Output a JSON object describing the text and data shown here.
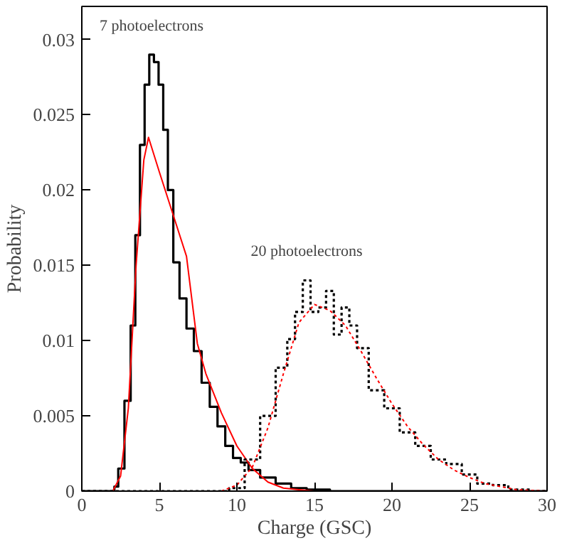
{
  "chart_data": {
    "type": "step",
    "xlabel": "Charge (GSC)",
    "ylabel": "Probability",
    "xlim": [
      0,
      30
    ],
    "ylim": [
      0,
      0.0322
    ],
    "xticks": [
      0,
      5,
      10,
      15,
      20,
      25,
      30
    ],
    "yticks": [
      0,
      0.005,
      0.01,
      0.015,
      0.02,
      0.025,
      0.03
    ],
    "grid": false,
    "annotations": [
      "7 photoelectrons",
      "20 photoelectrons"
    ],
    "series": [
      {
        "color": "#000000",
        "line_style": "solid",
        "x": [
          0,
          2,
          2.2,
          2.5,
          3,
          3.3,
          3.6,
          3.9,
          4.2,
          4.5,
          4.8,
          5.1,
          5.4,
          5.7,
          6.1,
          6.5,
          7,
          7.45,
          8,
          8.5,
          9,
          9.5,
          10,
          10.5,
          11,
          12,
          13,
          14,
          15,
          17,
          30
        ],
        "values": [
          0,
          0,
          0.0003,
          0.0015,
          0.006,
          0.011,
          0.017,
          0.023,
          0.027,
          0.029,
          0.0285,
          0.027,
          0.024,
          0.02,
          0.0152,
          0.0128,
          0.0108,
          0.0093,
          0.0072,
          0.0056,
          0.0043,
          0.003,
          0.0022,
          0.0019,
          0.0014,
          0.0009,
          0.0005,
          0.0002,
          0.0001,
          0,
          0
        ]
      },
      {
        "type": "line",
        "color": "#ff0000",
        "line_style": "solid",
        "x": [
          2,
          2.5,
          3,
          3.5,
          4,
          4.3,
          5,
          6,
          6.75,
          7.45,
          8,
          9,
          10,
          11,
          12,
          13,
          14,
          15
        ],
        "values": [
          0,
          0.001,
          0.0055,
          0.015,
          0.022,
          0.0235,
          0.0212,
          0.018,
          0.0156,
          0.0098,
          0.0078,
          0.0052,
          0.003,
          0.0015,
          0.0006,
          0.0002,
          0.0001,
          0
        ]
      },
      {
        "color": "#000000",
        "line_style": "dotted",
        "x": [
          0,
          9,
          10,
          11,
          12,
          13,
          13.5,
          14,
          14.5,
          15,
          15.5,
          16,
          16.5,
          17,
          17.5,
          18,
          19,
          20,
          21,
          22,
          23,
          24,
          25,
          26,
          27,
          28,
          30
        ],
        "values": [
          0,
          0,
          0.0002,
          0.0021,
          0.005,
          0.0082,
          0.0101,
          0.0119,
          0.014,
          0.0119,
          0.0122,
          0.0133,
          0.0104,
          0.0122,
          0.011,
          0.0095,
          0.0067,
          0.0055,
          0.0039,
          0.003,
          0.0021,
          0.0018,
          0.0011,
          0.0005,
          0.0004,
          0.0001,
          0
        ]
      },
      {
        "type": "line",
        "color": "#ff0000",
        "line_style": "dotted",
        "x": [
          9,
          10,
          11,
          12,
          13,
          14,
          15,
          16,
          17,
          18,
          19,
          20,
          21,
          22,
          23,
          24,
          25,
          26,
          27,
          28,
          30
        ],
        "values": [
          0,
          0.0004,
          0.0016,
          0.0042,
          0.0078,
          0.0112,
          0.0124,
          0.012,
          0.011,
          0.0093,
          0.0075,
          0.0058,
          0.0043,
          0.0031,
          0.0021,
          0.0014,
          0.0009,
          0.0005,
          0.0003,
          0.0001,
          0
        ]
      }
    ]
  }
}
